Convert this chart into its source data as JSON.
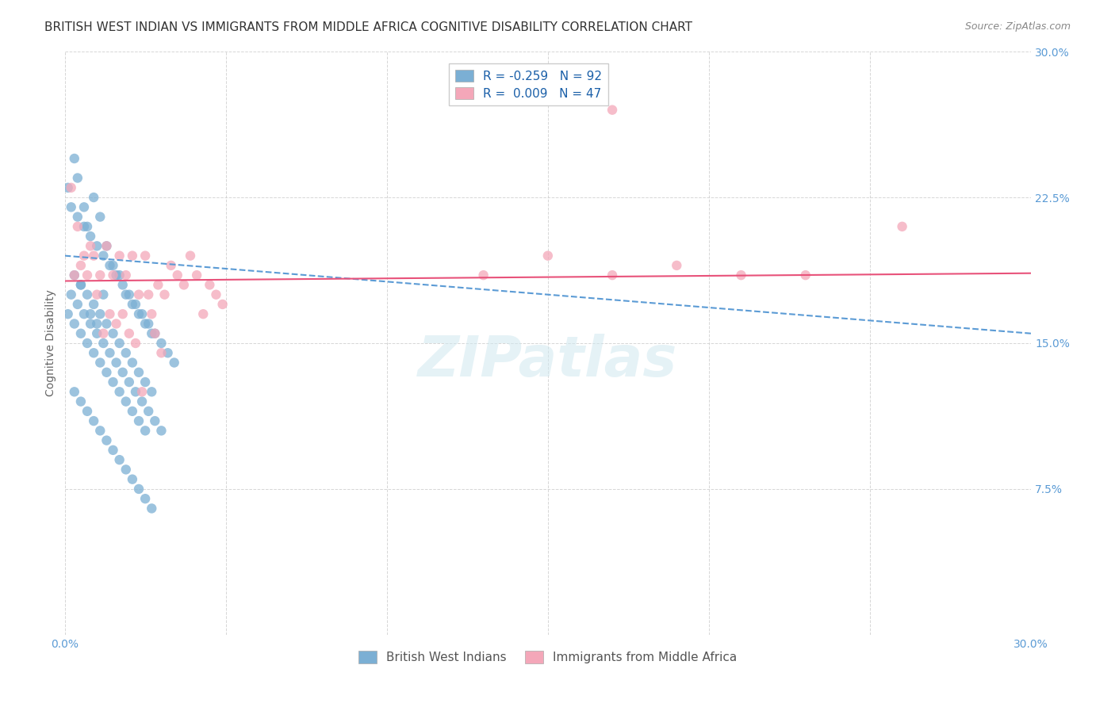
{
  "title": "BRITISH WEST INDIAN VS IMMIGRANTS FROM MIDDLE AFRICA COGNITIVE DISABILITY CORRELATION CHART",
  "source": "Source: ZipAtlas.com",
  "xlabel": "",
  "ylabel": "Cognitive Disability",
  "xlim": [
    0.0,
    0.3
  ],
  "ylim": [
    0.0,
    0.3
  ],
  "xticks": [
    0.0,
    0.05,
    0.1,
    0.15,
    0.2,
    0.25,
    0.3
  ],
  "yticks": [
    0.0,
    0.075,
    0.15,
    0.225,
    0.3
  ],
  "ytick_labels": [
    "",
    "7.5%",
    "15.0%",
    "22.5%",
    "30.0%"
  ],
  "xtick_labels": [
    "0.0%",
    "",
    "",
    "",
    "",
    "",
    "30.0%"
  ],
  "legend_entries": [
    {
      "label": "R = -0.259   N = 92",
      "color": "#a8c4e0"
    },
    {
      "label": "R =  0.009   N = 47",
      "color": "#f4a7b9"
    }
  ],
  "legend_label1": "British West Indians",
  "legend_label2": "Immigrants from Middle Africa",
  "watermark": "ZIPatlas",
  "blue_scatter_x": [
    0.005,
    0.008,
    0.01,
    0.012,
    0.003,
    0.004,
    0.006,
    0.007,
    0.009,
    0.011,
    0.013,
    0.015,
    0.017,
    0.019,
    0.021,
    0.023,
    0.025,
    0.027,
    0.002,
    0.004,
    0.006,
    0.008,
    0.01,
    0.012,
    0.014,
    0.016,
    0.018,
    0.02,
    0.022,
    0.024,
    0.026,
    0.028,
    0.03,
    0.032,
    0.034,
    0.001,
    0.003,
    0.005,
    0.007,
    0.009,
    0.011,
    0.013,
    0.015,
    0.017,
    0.019,
    0.021,
    0.023,
    0.025,
    0.027,
    0.002,
    0.004,
    0.006,
    0.008,
    0.01,
    0.012,
    0.014,
    0.016,
    0.018,
    0.02,
    0.022,
    0.024,
    0.026,
    0.028,
    0.03,
    0.001,
    0.003,
    0.005,
    0.007,
    0.009,
    0.011,
    0.013,
    0.015,
    0.017,
    0.019,
    0.021,
    0.023,
    0.025,
    0.003,
    0.005,
    0.007,
    0.009,
    0.011,
    0.013,
    0.015,
    0.017,
    0.019,
    0.021,
    0.023,
    0.025,
    0.027
  ],
  "blue_scatter_y": [
    0.18,
    0.165,
    0.16,
    0.175,
    0.245,
    0.235,
    0.22,
    0.21,
    0.225,
    0.215,
    0.2,
    0.19,
    0.185,
    0.175,
    0.17,
    0.165,
    0.16,
    0.155,
    0.22,
    0.215,
    0.21,
    0.205,
    0.2,
    0.195,
    0.19,
    0.185,
    0.18,
    0.175,
    0.17,
    0.165,
    0.16,
    0.155,
    0.15,
    0.145,
    0.14,
    0.23,
    0.185,
    0.18,
    0.175,
    0.17,
    0.165,
    0.16,
    0.155,
    0.15,
    0.145,
    0.14,
    0.135,
    0.13,
    0.125,
    0.175,
    0.17,
    0.165,
    0.16,
    0.155,
    0.15,
    0.145,
    0.14,
    0.135,
    0.13,
    0.125,
    0.12,
    0.115,
    0.11,
    0.105,
    0.165,
    0.16,
    0.155,
    0.15,
    0.145,
    0.14,
    0.135,
    0.13,
    0.125,
    0.12,
    0.115,
    0.11,
    0.105,
    0.125,
    0.12,
    0.115,
    0.11,
    0.105,
    0.1,
    0.095,
    0.09,
    0.085,
    0.08,
    0.075,
    0.07,
    0.065
  ],
  "pink_scatter_x": [
    0.003,
    0.005,
    0.007,
    0.009,
    0.011,
    0.013,
    0.015,
    0.017,
    0.019,
    0.021,
    0.023,
    0.025,
    0.027,
    0.029,
    0.031,
    0.033,
    0.035,
    0.037,
    0.039,
    0.041,
    0.043,
    0.045,
    0.047,
    0.049,
    0.13,
    0.15,
    0.17,
    0.19,
    0.21,
    0.23,
    0.002,
    0.004,
    0.006,
    0.008,
    0.01,
    0.012,
    0.014,
    0.016,
    0.018,
    0.02,
    0.022,
    0.024,
    0.026,
    0.028,
    0.03,
    0.17,
    0.26
  ],
  "pink_scatter_y": [
    0.185,
    0.19,
    0.185,
    0.195,
    0.185,
    0.2,
    0.185,
    0.195,
    0.185,
    0.195,
    0.175,
    0.195,
    0.165,
    0.18,
    0.175,
    0.19,
    0.185,
    0.18,
    0.195,
    0.185,
    0.165,
    0.18,
    0.175,
    0.17,
    0.185,
    0.195,
    0.185,
    0.19,
    0.185,
    0.185,
    0.23,
    0.21,
    0.195,
    0.2,
    0.175,
    0.155,
    0.165,
    0.16,
    0.165,
    0.155,
    0.15,
    0.125,
    0.175,
    0.155,
    0.145,
    0.27,
    0.21
  ],
  "blue_line_x": [
    0.0,
    0.3
  ],
  "blue_line_y_start": 0.195,
  "blue_line_y_end": 0.155,
  "pink_line_x": [
    0.0,
    0.3
  ],
  "pink_line_y_start": 0.182,
  "pink_line_y_end": 0.186,
  "scatter_color_blue": "#7bafd4",
  "scatter_color_pink": "#f4a7b9",
  "line_color_blue": "#5b9bd5",
  "line_color_pink": "#e8527a",
  "bg_color": "#ffffff",
  "grid_color": "#cccccc",
  "title_fontsize": 11,
  "axis_label_fontsize": 10,
  "tick_fontsize": 10,
  "tick_color_right": "#5b9bd5"
}
